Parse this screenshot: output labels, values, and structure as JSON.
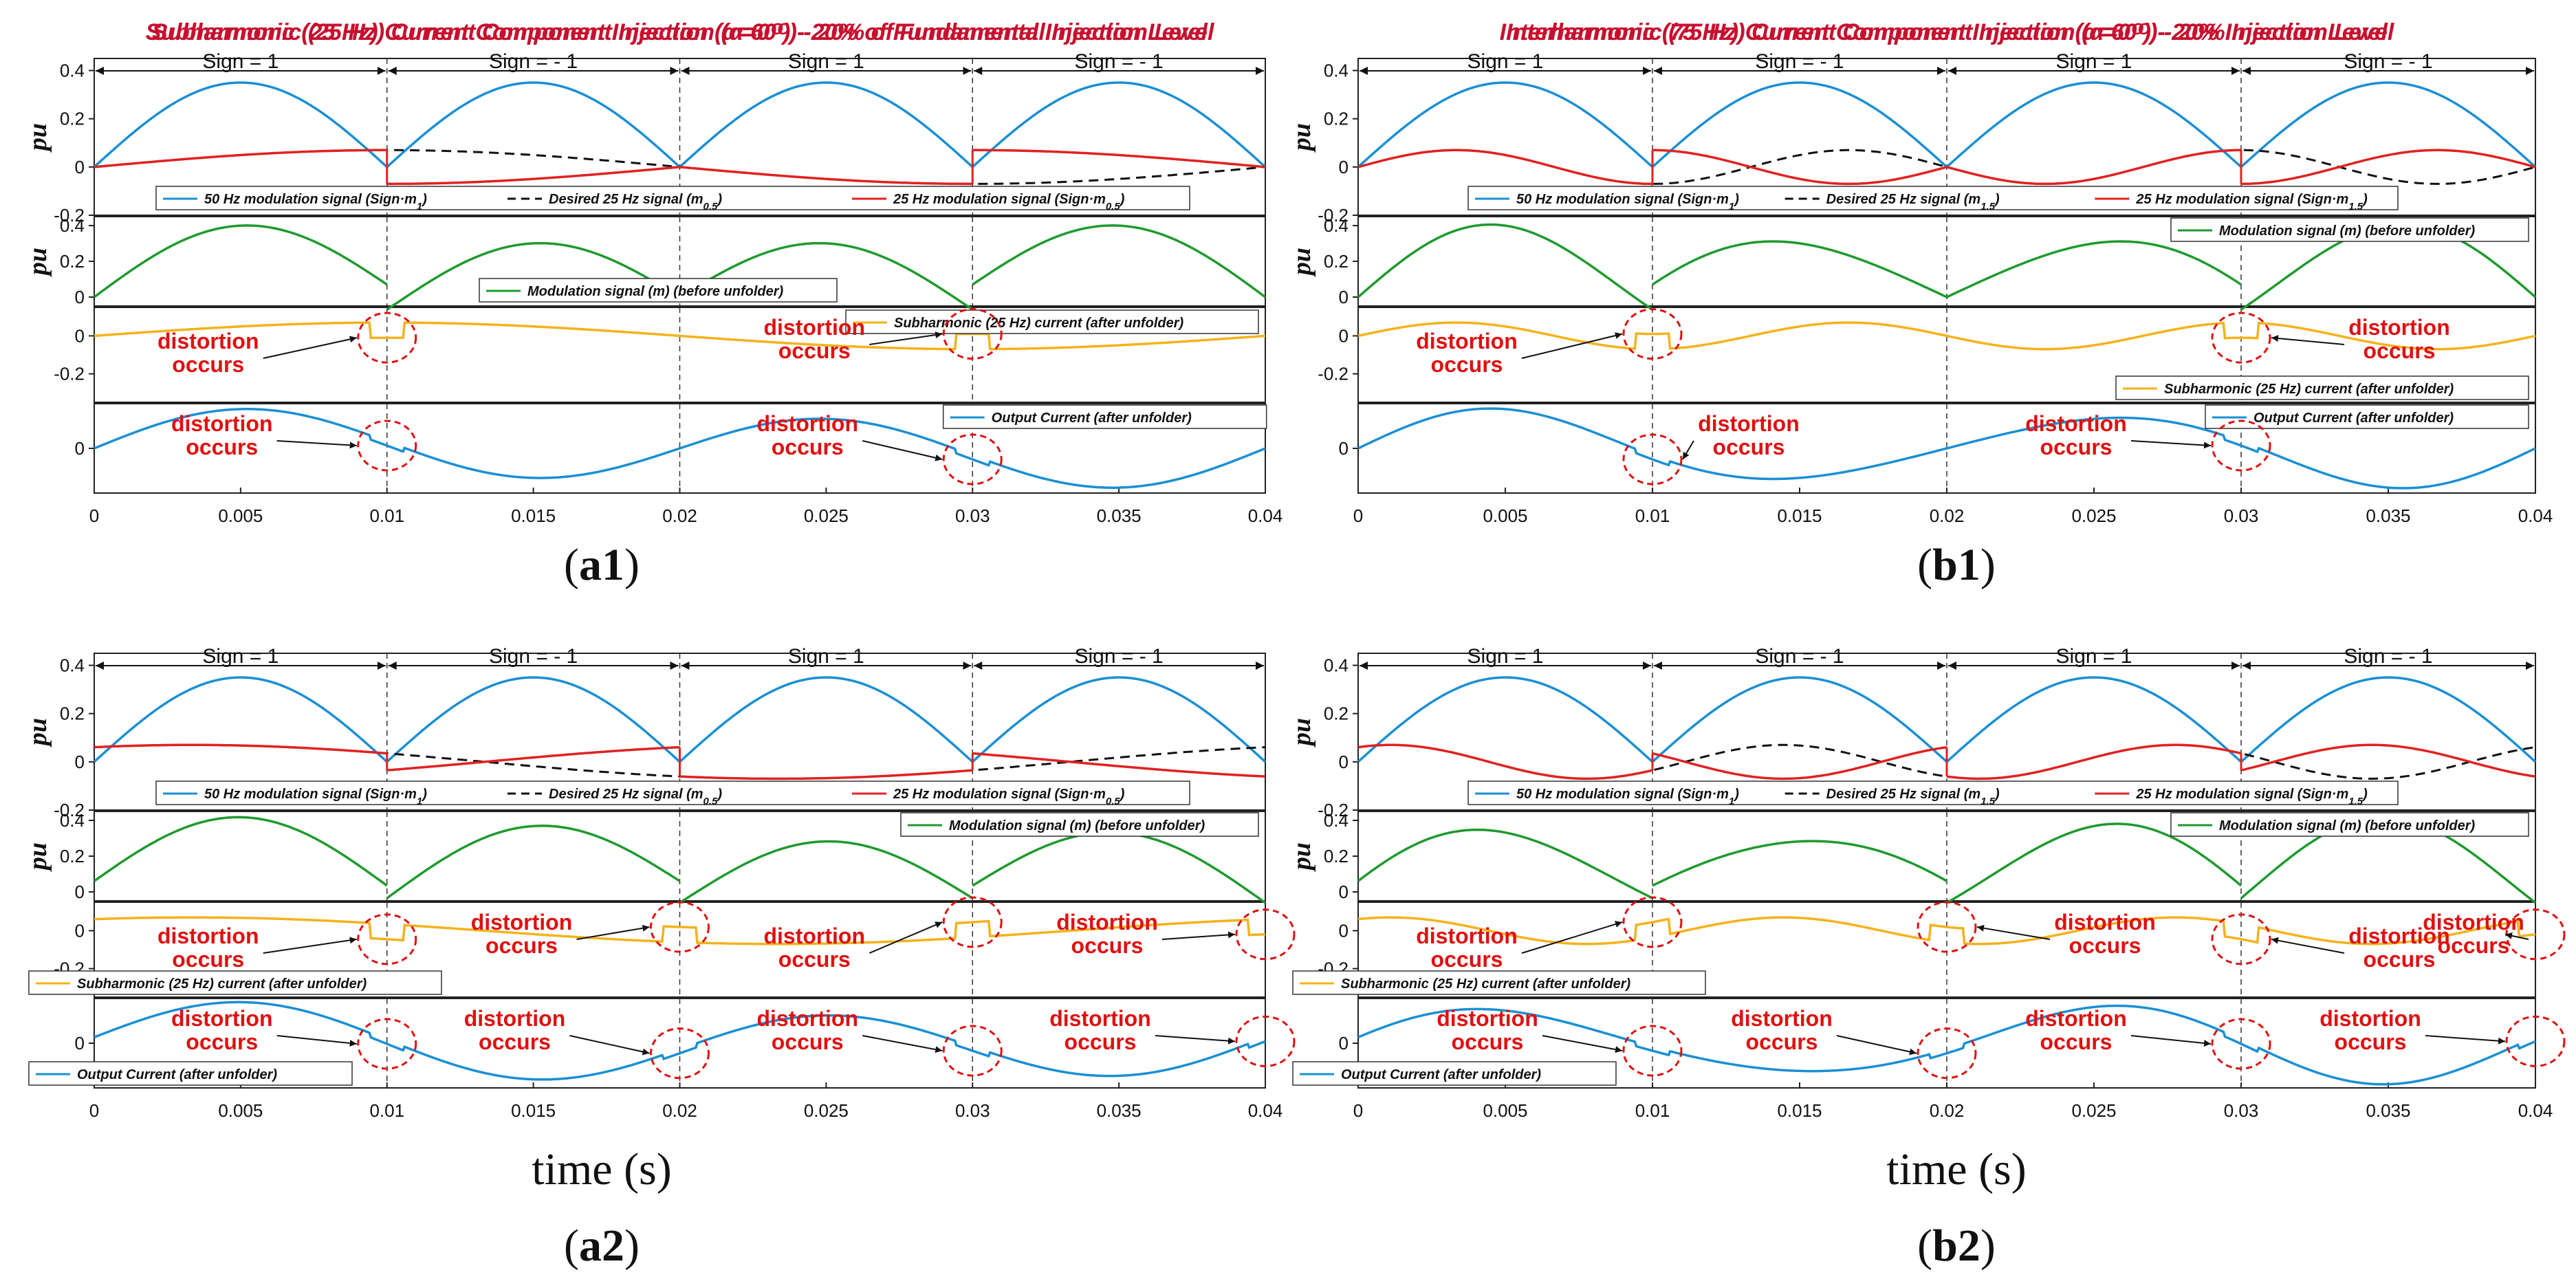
{
  "legend_text": {
    "m1_a": "50 Hz modulation signal (Sign·m",
    "m1_sub": "1",
    "des_a": "Desired 25 Hz signal (m",
    "des_sub_05": "0.5",
    "des_sub_15": "1.5",
    "mod25_a": "25 Hz modulation signal (Sign·m",
    "close": ")",
    "mod": "Modulation signal (m) (before unfolder)",
    "sub": "Subharmonic (25 Hz) current (after unfolder)",
    "out": "Output Current (after unfolder)"
  },
  "sign_labels": [
    "Sign = 1",
    "Sign = - 1",
    "Sign = 1",
    "Sign = - 1"
  ],
  "ylabel": "pu",
  "xlabel": "time (s)",
  "distortion_label": [
    "distortion",
    "occurs"
  ],
  "x_ticks": [
    "0",
    "0.005",
    "0.01",
    "0.015",
    "0.02",
    "0.025",
    "0.03",
    "0.035",
    "0.04"
  ],
  "chart_data": [
    {
      "id": "a1",
      "type": "line",
      "caption": "a1",
      "title": "Subharmonic (25 Hz) Current Component Injection (α=0ᴼ) - 20% of Fundamental Injection Level",
      "alpha_deg": 0,
      "freq": 25,
      "desired_sub": "0.5",
      "x": [
        0,
        0.04
      ],
      "xlabel": "",
      "panels": [
        {
          "name": "modulation",
          "ylim": [
            -0.2,
            0.45
          ],
          "yticks": [
            "0.4",
            "0.2",
            "0",
            "-0.2"
          ],
          "series": [
            "50 Hz modulation signal",
            "Desired 25 Hz signal",
            "25 Hz modulation signal"
          ]
        },
        {
          "name": "mod-before-unfolder",
          "ylim": [
            -0.05,
            0.45
          ],
          "yticks": [
            "0.4",
            "0.2",
            "0"
          ],
          "series": [
            "Modulation signal (m) (before unfolder)"
          ]
        },
        {
          "name": "sub-current",
          "ylim": [
            -0.35,
            0.15
          ],
          "yticks": [
            "-0.2",
            "0"
          ],
          "series": [
            "Subharmonic (25 Hz) current (after unfolder)"
          ]
        },
        {
          "name": "output-current",
          "ylim": [
            -1.3,
            1.3
          ],
          "yticks": [
            "0"
          ],
          "series": [
            "Output Current (after unfolder)"
          ]
        }
      ]
    },
    {
      "id": "b1",
      "type": "line",
      "caption": "b1",
      "title": "Interharmonic (75 Hz) Current Component Injection (α=0ᴼ) - 20% Injection Level",
      "alpha_deg": 0,
      "freq": 75,
      "desired_sub": "1.5",
      "x": [
        0,
        0.04
      ],
      "xlabel": "",
      "panels": [
        {
          "name": "modulation",
          "ylim": [
            -0.2,
            0.45
          ],
          "yticks": [
            "0.4",
            "0.2",
            "0",
            "-0.2"
          ],
          "series": [
            "50 Hz modulation signal",
            "Desired 25 Hz signal",
            "25 Hz modulation signal"
          ]
        },
        {
          "name": "mod-before-unfolder",
          "ylim": [
            -0.05,
            0.45
          ],
          "yticks": [
            "0.4",
            "0.2",
            "0"
          ],
          "series": [
            "Modulation signal (m) (before unfolder)"
          ]
        },
        {
          "name": "sub-current",
          "ylim": [
            -0.35,
            0.15
          ],
          "yticks": [
            "-0.2",
            "0"
          ],
          "series": [
            "Subharmonic (25 Hz) current (after unfolder)"
          ]
        },
        {
          "name": "output-current",
          "ylim": [
            -1.3,
            1.3
          ],
          "yticks": [
            "0"
          ],
          "series": [
            "Output Current (after unfolder)"
          ]
        }
      ]
    },
    {
      "id": "a2",
      "type": "line",
      "caption": "a2",
      "title": "Subharmonic (25 Hz) Current Component Injection (α=60ᴼ) - 20% of Fundamental Injection Level",
      "alpha_deg": 60,
      "freq": 25,
      "desired_sub": "0.5",
      "x": [
        0,
        0.04
      ],
      "xlabel": "time (s)",
      "panels": [
        {
          "name": "modulation",
          "ylim": [
            -0.2,
            0.45
          ],
          "yticks": [
            "0.4",
            "0.2",
            "0",
            "-0.2"
          ],
          "series": [
            "50 Hz modulation signal",
            "Desired 25 Hz signal",
            "25 Hz modulation signal"
          ]
        },
        {
          "name": "mod-before-unfolder",
          "ylim": [
            -0.05,
            0.45
          ],
          "yticks": [
            "0.4",
            "0.2",
            "0"
          ],
          "series": [
            "Modulation signal (m) (before unfolder)"
          ]
        },
        {
          "name": "sub-current",
          "ylim": [
            -0.35,
            0.15
          ],
          "yticks": [
            "-0.2",
            "0"
          ],
          "series": [
            "Subharmonic (25 Hz) current (after unfolder)"
          ]
        },
        {
          "name": "output-current",
          "ylim": [
            -1.3,
            1.3
          ],
          "yticks": [
            "0"
          ],
          "series": [
            "Output Current (after unfolder)"
          ]
        }
      ]
    },
    {
      "id": "b2",
      "type": "line",
      "caption": "b2",
      "title": "Interharmonic (75 Hz) Current Component Injection (α=60ᴼ) - 20% Injection Level",
      "alpha_deg": 60,
      "freq": 75,
      "desired_sub": "1.5",
      "x": [
        0,
        0.04
      ],
      "xlabel": "time (s)",
      "panels": [
        {
          "name": "modulation",
          "ylim": [
            -0.2,
            0.45
          ],
          "yticks": [
            "0.4",
            "0.2",
            "0",
            "-0.2"
          ],
          "series": [
            "50 Hz modulation signal",
            "Desired 25 Hz signal",
            "25 Hz modulation signal"
          ]
        },
        {
          "name": "mod-before-unfolder",
          "ylim": [
            -0.05,
            0.45
          ],
          "yticks": [
            "0.4",
            "0.2",
            "0"
          ],
          "series": [
            "Modulation signal (m) (before unfolder)"
          ]
        },
        {
          "name": "sub-current",
          "ylim": [
            -0.35,
            0.15
          ],
          "yticks": [
            "-0.2",
            "0"
          ],
          "series": [
            "Subharmonic (25 Hz) current (after unfolder)"
          ]
        },
        {
          "name": "output-current",
          "ylim": [
            -1.3,
            1.3
          ],
          "yticks": [
            "0"
          ],
          "series": [
            "Output Current (after unfolder)"
          ]
        }
      ]
    }
  ],
  "colors": {
    "blue": "#1a8fd4",
    "red": "#e02222",
    "black": "#111111",
    "green": "#1e9a2e",
    "orange": "#f5b21a",
    "title": "#c8102e",
    "annot": "#e01010"
  }
}
